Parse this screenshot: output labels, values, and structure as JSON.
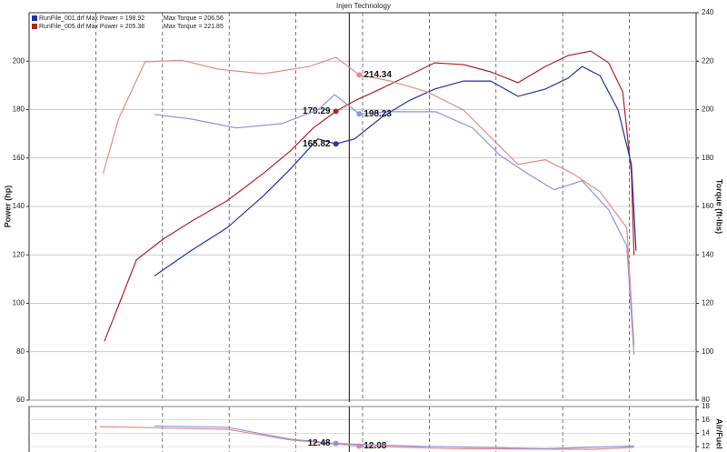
{
  "chart_data": [
    {
      "type": "line",
      "title": "Injen Technology",
      "y_label": "Power (hp)",
      "y2_label": "Torque (ft-lbs)",
      "xlim": [
        0,
        10
      ],
      "xticks": [
        1,
        2,
        3,
        4,
        5,
        6,
        7,
        8,
        9
      ],
      "ylim": [
        60,
        220
      ],
      "yticks": [
        60,
        80,
        100,
        120,
        140,
        160,
        180,
        200
      ],
      "y2lim": [
        80,
        240
      ],
      "y2ticks": [
        80,
        100,
        120,
        140,
        160,
        180,
        200,
        220,
        240
      ],
      "grid": true,
      "cursor": 4.8,
      "legend": [
        {
          "color": "#2233aa",
          "power_label": "RunFile_001.drf Max Power = 198.92",
          "torque_label": "Max Torque = 206.56"
        },
        {
          "color": "#b02424",
          "power_label": "RunFile_005.drf Max Power = 205.38",
          "torque_label": "Max Torque = 221.85"
        }
      ],
      "series": [
        {
          "color": "#b02424",
          "axis": "y",
          "x": [
            1.13,
            1.61,
            2.02,
            2.43,
            2.97,
            3.51,
            3.92,
            4.26,
            4.6,
            4.88,
            5.29,
            5.69,
            6.08,
            6.51,
            6.92,
            7.33,
            7.74,
            8.08,
            8.42,
            8.69,
            8.9,
            9.03,
            9.07
          ],
          "values": [
            84.3,
            118,
            126.7,
            133.8,
            142.4,
            153.6,
            163,
            172.4,
            179.29,
            183.6,
            188.8,
            194.1,
            199.3,
            198.6,
            195.6,
            191.1,
            197.8,
            202.3,
            204.2,
            199.3,
            187.3,
            153.6,
            119.9
          ],
          "marker": {
            "x": 4.6,
            "value": 179.29
          }
        },
        {
          "color": "#2233aa",
          "axis": "y",
          "x": [
            1.88,
            2.43,
            2.97,
            3.51,
            3.92,
            4.33,
            4.6,
            4.88,
            5.29,
            5.69,
            6.08,
            6.51,
            6.92,
            7.33,
            7.74,
            8.08,
            8.29,
            8.56,
            8.83,
            9.03,
            9.1
          ],
          "values": [
            111.3,
            121.8,
            131.2,
            144.3,
            155.5,
            167.9,
            165.82,
            167.9,
            176.9,
            183.6,
            188.5,
            191.8,
            191.8,
            185.5,
            188.5,
            193,
            197.8,
            194,
            179.9,
            157.4,
            121.8
          ],
          "marker": {
            "x": 4.6,
            "value": 165.82
          }
        },
        {
          "color": "#e58a8a",
          "axis": "y2",
          "x": [
            1.11,
            1.34,
            1.74,
            2.29,
            2.83,
            3.51,
            4.2,
            4.6,
            4.95,
            5.42,
            5.97,
            6.51,
            6.92,
            7.33,
            7.74,
            8.15,
            8.56,
            8.96,
            9.07
          ],
          "values": [
            173.6,
            196.1,
            219.7,
            220.4,
            216.7,
            214.8,
            217.8,
            221.6,
            214.34,
            211.8,
            207.3,
            199.9,
            188.6,
            177.4,
            179.3,
            173.6,
            166.1,
            151.2,
            102.5
          ],
          "marker": {
            "x": 4.95,
            "value": 214.34
          }
        },
        {
          "color": "#8f93e0",
          "axis": "y2",
          "x": [
            1.88,
            2.43,
            3.11,
            3.79,
            4.33,
            4.58,
            4.95,
            5.42,
            6.1,
            6.65,
            7.06,
            7.47,
            7.87,
            8.29,
            8.69,
            8.96,
            9.07
          ],
          "values": [
            198,
            196.1,
            192.4,
            194.2,
            199.9,
            206.2,
            198.23,
            199.1,
            199.1,
            192.4,
            181.1,
            173.6,
            166.9,
            170.6,
            158.6,
            143.7,
            98.7
          ],
          "marker": {
            "x": 4.95,
            "value": 198.23
          }
        }
      ]
    },
    {
      "type": "line",
      "y2_label": "Air/Fuel",
      "xlim": [
        0,
        10
      ],
      "xticks": [
        1,
        2,
        3,
        4,
        5,
        6,
        7,
        8,
        9
      ],
      "y2lim": [
        11.2,
        18
      ],
      "y2ticks": [
        12,
        14,
        16,
        18
      ],
      "cursor": 4.8,
      "series": [
        {
          "color": "#e58a8a",
          "axis": "y2",
          "x": [
            1.06,
            2.97,
            3.92,
            4.95,
            6.38,
            8.42,
            9.07
          ],
          "values": [
            15.0,
            14.6,
            13.0,
            12.08,
            11.7,
            11.6,
            11.9
          ],
          "marker": {
            "x": 4.95,
            "value": 12.08
          }
        },
        {
          "color": "#8f93e0",
          "axis": "y2",
          "x": [
            1.88,
            2.97,
            3.92,
            4.6,
            5.69,
            7.74,
            9.07
          ],
          "values": [
            15.1,
            14.9,
            13.1,
            12.48,
            12.1,
            11.7,
            12.1
          ],
          "marker": {
            "x": 4.6,
            "value": 12.48
          }
        }
      ]
    }
  ]
}
